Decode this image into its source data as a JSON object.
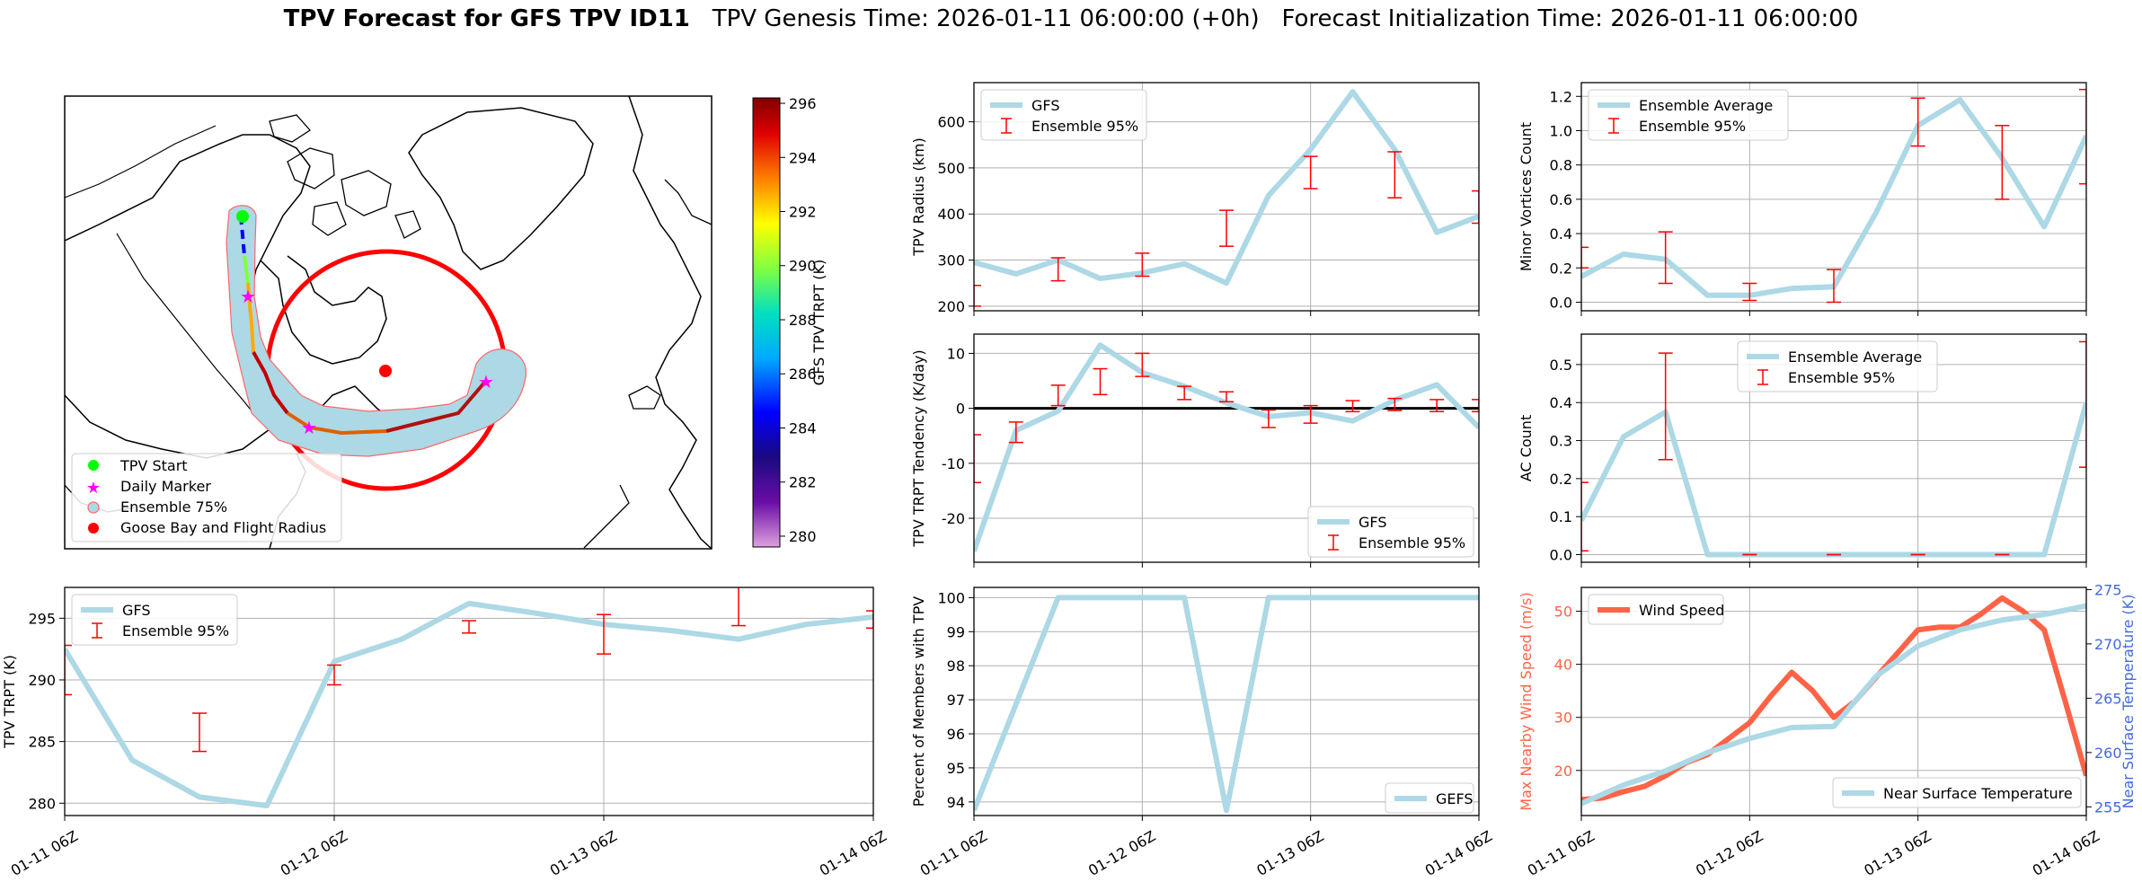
{
  "title": {
    "bold": "TPV Forecast for GFS TPV ID11",
    "genesis": "TPV Genesis Time: 2026-01-11 06:00:00 (+0h)",
    "init": "Forecast Initialization Time: 2026-01-11 06:00:00"
  },
  "colors": {
    "gfs": "#add8e6",
    "err": "#ff0000",
    "wind": "#ff6347",
    "temp": "#4169e1"
  },
  "time_ticks": [
    "01-11 06Z",
    "01-12 06Z",
    "01-13 06Z",
    "01-14 06Z"
  ],
  "map": {
    "legend": [
      "TPV Start",
      "Daily Marker",
      "Ensemble 75%",
      "Goose Bay and Flight Radius"
    ],
    "colorbar": {
      "label": "GFS TPV TRPT (K)",
      "ticks": [
        280,
        282,
        284,
        286,
        288,
        290,
        292,
        294,
        296
      ],
      "min": 279.6,
      "max": 296.2
    }
  },
  "chart_data": [
    {
      "id": "radius",
      "type": "line",
      "ylabel": "TPV Radius (km)",
      "ylim": [
        190,
        685
      ],
      "yticks": [
        200,
        300,
        400,
        500,
        600
      ],
      "legend": [
        "GFS",
        "Ensemble 95%"
      ],
      "legend_loc": "upper left",
      "series": [
        {
          "name": "GFS",
          "x": [
            0,
            0.25,
            0.5,
            0.75,
            1,
            1.25,
            1.5,
            1.75,
            2,
            2.25,
            2.5,
            2.75,
            3
          ],
          "values": [
            295,
            270,
            300,
            260,
            272,
            292,
            250,
            440,
            540,
            665,
            540,
            360,
            395
          ]
        }
      ],
      "err": [
        {
          "x": 0,
          "lo": 200,
          "hi": 245
        },
        {
          "x": 0.5,
          "lo": 255,
          "hi": 305
        },
        {
          "x": 1,
          "lo": 265,
          "hi": 315
        },
        {
          "x": 1.5,
          "lo": 330,
          "hi": 408
        },
        {
          "x": 2,
          "lo": 455,
          "hi": 525
        },
        {
          "x": 2.5,
          "lo": 435,
          "hi": 535
        },
        {
          "x": 3,
          "lo": 380,
          "hi": 450
        }
      ]
    },
    {
      "id": "minor",
      "type": "line",
      "ylabel": "Minor Vortices Count",
      "ylim": [
        -0.05,
        1.28
      ],
      "yticks": [
        0.0,
        0.2,
        0.4,
        0.6,
        0.8,
        1.0,
        1.2
      ],
      "legend": [
        "Ensemble Average",
        "Ensemble 95%"
      ],
      "legend_loc": "upper left",
      "series": [
        {
          "name": "Ensemble Average",
          "x": [
            0,
            0.25,
            0.5,
            0.75,
            1,
            1.25,
            1.5,
            1.75,
            2,
            2.25,
            2.5,
            2.75,
            3
          ],
          "values": [
            0.15,
            0.28,
            0.25,
            0.04,
            0.04,
            0.08,
            0.09,
            0.52,
            1.03,
            1.18,
            0.84,
            0.44,
            0.97
          ]
        }
      ],
      "err": [
        {
          "x": 0,
          "lo": 0.2,
          "hi": 0.32
        },
        {
          "x": 0.5,
          "lo": 0.11,
          "hi": 0.41
        },
        {
          "x": 1,
          "lo": 0.01,
          "hi": 0.11
        },
        {
          "x": 1.5,
          "lo": 0.0,
          "hi": 0.19
        },
        {
          "x": 2,
          "lo": 0.91,
          "hi": 1.19
        },
        {
          "x": 2.5,
          "lo": 0.6,
          "hi": 1.03
        },
        {
          "x": 3,
          "lo": 0.69,
          "hi": 1.24
        }
      ]
    },
    {
      "id": "tendency",
      "type": "line",
      "ylabel": "TPV TRPT Tendency (K/day)",
      "ylim": [
        -28,
        13.5
      ],
      "yticks": [
        -20,
        -10,
        0,
        10
      ],
      "legend": [
        "GFS",
        "Ensemble 95%"
      ],
      "legend_loc": "lower right",
      "zero_line": true,
      "series": [
        {
          "name": "GFS",
          "x": [
            0,
            0.25,
            0.5,
            0.75,
            1,
            1.25,
            1.5,
            1.75,
            2,
            2.25,
            2.5,
            2.75,
            3
          ],
          "values": [
            -26,
            -4,
            -0.5,
            11.5,
            6.5,
            4,
            1,
            -1.5,
            -0.8,
            -2.3,
            1.5,
            4.3,
            -3.5
          ]
        }
      ],
      "err": [
        {
          "x": 0,
          "lo": -13.5,
          "hi": -4.8
        },
        {
          "x": 0.25,
          "lo": -6.2,
          "hi": -2.5
        },
        {
          "x": 0.5,
          "lo": 0.5,
          "hi": 4.2
        },
        {
          "x": 0.75,
          "lo": 2.5,
          "hi": 7.2
        },
        {
          "x": 1,
          "lo": 5.8,
          "hi": 10
        },
        {
          "x": 1.25,
          "lo": 1.6,
          "hi": 4
        },
        {
          "x": 1.5,
          "lo": 1.2,
          "hi": 3
        },
        {
          "x": 1.75,
          "lo": -3.5,
          "hi": -0.3
        },
        {
          "x": 2,
          "lo": -2.7,
          "hi": 0.5
        },
        {
          "x": 2.25,
          "lo": -0.6,
          "hi": 1.4
        },
        {
          "x": 2.5,
          "lo": -0.4,
          "hi": 1.8
        },
        {
          "x": 2.75,
          "lo": -0.6,
          "hi": 1.6
        },
        {
          "x": 3,
          "lo": -0.6,
          "hi": 1.6
        }
      ]
    },
    {
      "id": "ac",
      "type": "line",
      "ylabel": "AC Count",
      "ylim": [
        -0.02,
        0.58
      ],
      "yticks": [
        0.0,
        0.1,
        0.2,
        0.3,
        0.4,
        0.5
      ],
      "legend": [
        "Ensemble Average",
        "Ensemble 95%"
      ],
      "legend_loc": "upper center",
      "series": [
        {
          "name": "Ensemble Average",
          "x": [
            0,
            0.25,
            0.5,
            0.75,
            1,
            1.25,
            1.5,
            1.75,
            2,
            2.25,
            2.5,
            2.75,
            3
          ],
          "values": [
            0.09,
            0.31,
            0.375,
            0,
            0,
            0,
            0,
            0,
            0,
            0,
            0,
            0,
            0.4
          ]
        }
      ],
      "err": [
        {
          "x": 0,
          "lo": 0.01,
          "hi": 0.19
        },
        {
          "x": 0.5,
          "lo": 0.25,
          "hi": 0.53
        },
        {
          "x": 1,
          "lo": 0,
          "hi": 0
        },
        {
          "x": 1.5,
          "lo": 0,
          "hi": 0
        },
        {
          "x": 2,
          "lo": 0,
          "hi": 0
        },
        {
          "x": 2.5,
          "lo": 0,
          "hi": 0
        },
        {
          "x": 3,
          "lo": 0.23,
          "hi": 0.56
        }
      ]
    },
    {
      "id": "trpt",
      "type": "line",
      "ylabel": "TPV TRPT (K)",
      "ylim": [
        279,
        297.5
      ],
      "yticks": [
        280,
        285,
        290,
        295
      ],
      "legend": [
        "GFS",
        "Ensemble 95%"
      ],
      "legend_loc": "upper left",
      "series": [
        {
          "name": "GFS",
          "x": [
            0,
            0.25,
            0.5,
            0.75,
            1,
            1.25,
            1.5,
            1.75,
            2,
            2.25,
            2.5,
            2.75,
            3
          ],
          "values": [
            292.5,
            283.5,
            280.5,
            279.8,
            291.5,
            293.3,
            296.2,
            295.4,
            294.5,
            294,
            293.3,
            294.5,
            295.1
          ]
        }
      ],
      "err": [
        {
          "x": 0,
          "lo": 288.8,
          "hi": 292.8
        },
        {
          "x": 0.5,
          "lo": 284.2,
          "hi": 287.3
        },
        {
          "x": 1,
          "lo": 289.6,
          "hi": 291.2
        },
        {
          "x": 1.5,
          "lo": 293.8,
          "hi": 294.8
        },
        {
          "x": 2,
          "lo": 292.1,
          "hi": 295.3
        },
        {
          "x": 2.5,
          "lo": 294.4,
          "hi": 298.5
        },
        {
          "x": 3,
          "lo": 294.2,
          "hi": 295.6
        }
      ]
    },
    {
      "id": "percent",
      "type": "line",
      "ylabel": "Percent of Members with TPV",
      "ylim": [
        93.6,
        100.3
      ],
      "yticks": [
        94,
        95,
        96,
        97,
        98,
        99,
        100
      ],
      "legend": [
        "GEFS"
      ],
      "legend_loc": "lower right",
      "series": [
        {
          "name": "GEFS",
          "x": [
            0,
            0.5,
            1,
            1.25,
            1.5,
            1.75,
            2,
            2.5,
            3
          ],
          "values": [
            93.75,
            100,
            100,
            100,
            93.75,
            100,
            100,
            100,
            100
          ]
        }
      ],
      "err": []
    },
    {
      "id": "wind",
      "type": "line",
      "ylabel": "Max Nearby Wind Speed (m/s)",
      "ylabel2": "Near Surface Temperature (K)",
      "ylim": [
        11.5,
        54.5
      ],
      "yticks": [
        20,
        30,
        40,
        50
      ],
      "ylim2": [
        254.2,
        275.2
      ],
      "yticks2": [
        255,
        260,
        265,
        270,
        275
      ],
      "legend": [
        "Wind Speed"
      ],
      "legend2": [
        "Near Surface Temperature"
      ],
      "series": [
        {
          "name": "Wind Speed",
          "axis": "left",
          "x": [
            0,
            0.125,
            0.25,
            0.375,
            0.5,
            0.625,
            0.75,
            0.875,
            1,
            1.125,
            1.25,
            1.375,
            1.5,
            1.625,
            1.75,
            1.875,
            2,
            2.125,
            2.25,
            2.375,
            2.5,
            2.625,
            2.75,
            2.875,
            3
          ],
          "values": [
            14.5,
            14.8,
            16,
            17,
            19,
            21.5,
            23,
            26,
            29,
            34,
            38.5,
            35,
            30,
            33,
            37.5,
            42,
            46.5,
            47,
            47,
            49.5,
            52.5,
            50,
            46.5,
            33,
            19
          ]
        },
        {
          "name": "Near Surface Temperature",
          "axis": "right",
          "x": [
            0,
            0.25,
            0.5,
            0.75,
            1,
            1.25,
            1.5,
            1.75,
            2,
            2.25,
            2.5,
            2.75,
            3
          ],
          "values": [
            255.3,
            257,
            258.3,
            260,
            261.3,
            262.3,
            262.4,
            267,
            269.8,
            271.3,
            272.2,
            272.7,
            273.5
          ]
        }
      ],
      "err": []
    }
  ]
}
